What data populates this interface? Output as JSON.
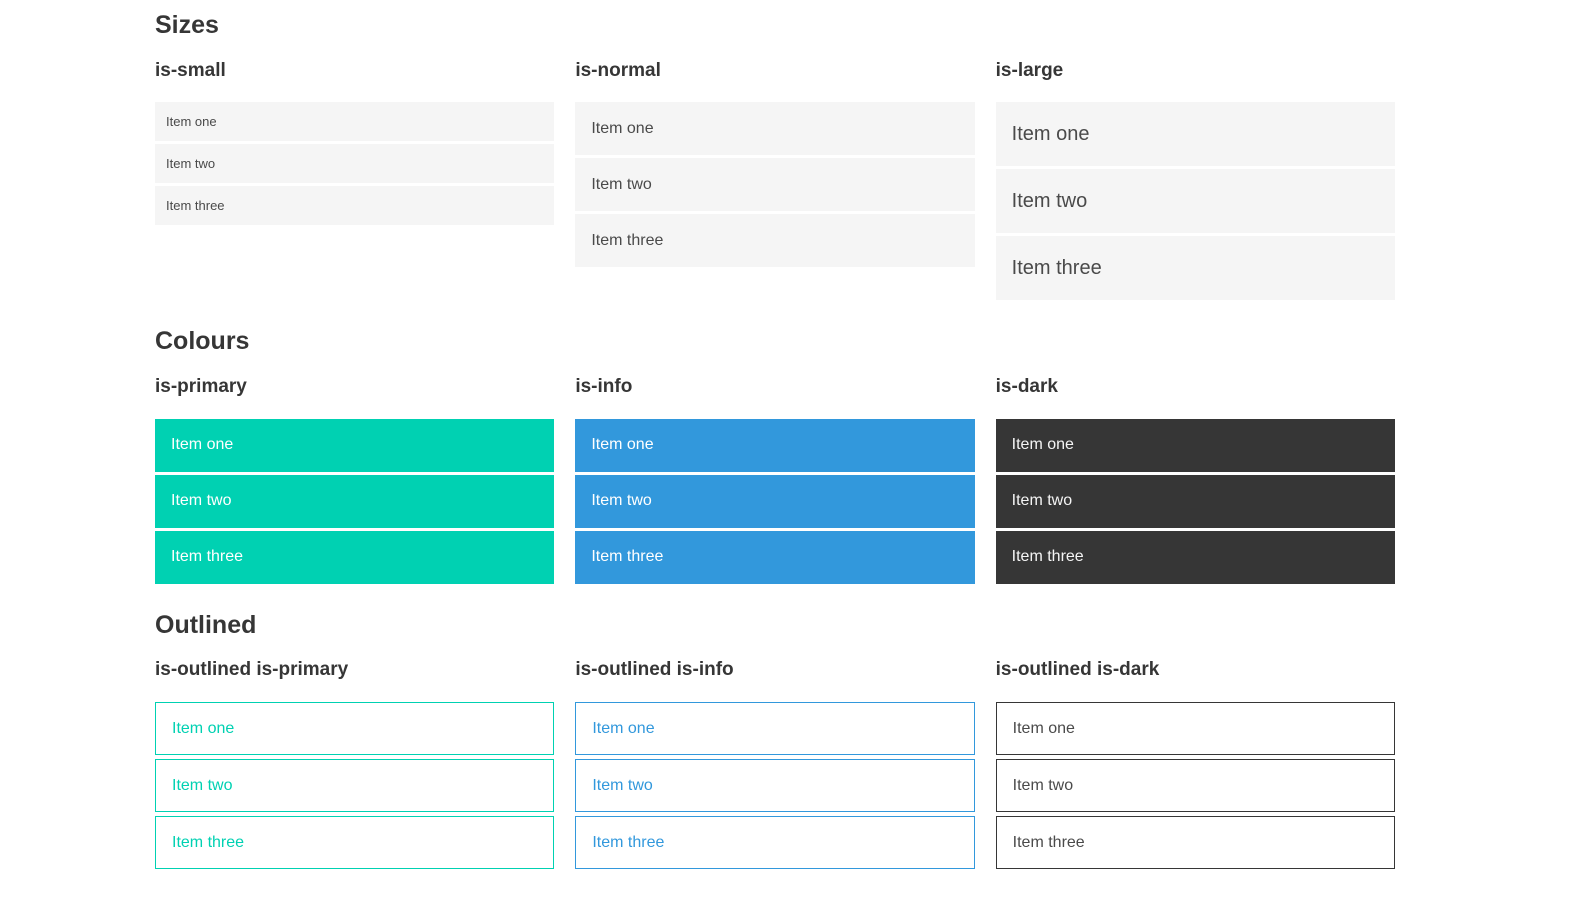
{
  "colors": {
    "primary": "#00d1b2",
    "info": "#3298dc",
    "dark": "#363636",
    "item_bg": "#f5f5f5",
    "item_text": "#4a4a4a",
    "heading": "#363636"
  },
  "sections": [
    {
      "title": "Sizes",
      "groups": [
        {
          "label": "is-small",
          "items": [
            "Item one",
            "Item two",
            "Item three"
          ]
        },
        {
          "label": "is-normal",
          "items": [
            "Item one",
            "Item two",
            "Item three"
          ]
        },
        {
          "label": "is-large",
          "items": [
            "Item one",
            "Item two",
            "Item three"
          ]
        }
      ]
    },
    {
      "title": "Colours",
      "groups": [
        {
          "label": "is-primary",
          "items": [
            "Item one",
            "Item two",
            "Item three"
          ]
        },
        {
          "label": "is-info",
          "items": [
            "Item one",
            "Item two",
            "Item three"
          ]
        },
        {
          "label": "is-dark",
          "items": [
            "Item one",
            "Item two",
            "Item three"
          ]
        }
      ]
    },
    {
      "title": "Outlined",
      "groups": [
        {
          "label": "is-outlined is-primary",
          "items": [
            "Item one",
            "Item two",
            "Item three"
          ]
        },
        {
          "label": "is-outlined is-info",
          "items": [
            "Item one",
            "Item two",
            "Item three"
          ]
        },
        {
          "label": "is-outlined is-dark",
          "items": [
            "Item one",
            "Item two",
            "Item three"
          ]
        }
      ]
    }
  ]
}
